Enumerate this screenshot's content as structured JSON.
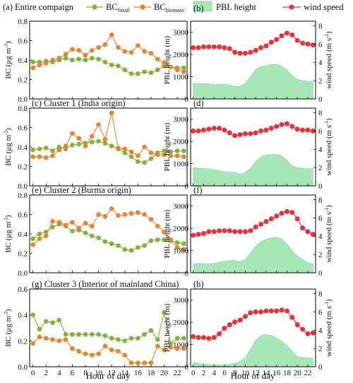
{
  "legend": {
    "prefix": "(a) Entire compaign",
    "bc_fossil": {
      "base": "BC",
      "sub": "fossil",
      "color": "#7fb33a"
    },
    "bc_biomass": {
      "base": "BC",
      "sub": "biomass",
      "color": "#e8832f"
    },
    "pbl": {
      "label": "PBL height",
      "color": "#a8e6b8"
    },
    "wind": {
      "label": "wind speed",
      "color": "#e8323a"
    }
  },
  "axes": {
    "xlabel": "Hour of  day",
    "bc_ylabel": {
      "base": "BC (",
      "unit": "μg m",
      "sup": "-3",
      "close": ")"
    },
    "pbl_ylabel": "PBL height (m)",
    "wind_ylabel": {
      "base": "wind speed (m s",
      "sup": "-1",
      "close": ")"
    },
    "x_ticks": [
      0,
      2,
      4,
      6,
      8,
      10,
      12,
      14,
      16,
      18,
      20,
      22
    ],
    "bc_ticks": [
      "0.0",
      "0.2",
      "0.4",
      "0.6",
      "0.8"
    ],
    "pbl_ticks": [
      "0",
      "1000",
      "2000",
      "3000"
    ],
    "wind_ticks": [
      "0",
      "2",
      "4",
      "6",
      "8"
    ]
  },
  "chart_data": [
    {
      "panel": "a",
      "type": "line",
      "title": "",
      "x": [
        0,
        1,
        2,
        3,
        4,
        5,
        6,
        7,
        8,
        9,
        10,
        11,
        12,
        13,
        14,
        15,
        16,
        17,
        18,
        19,
        20,
        21,
        22,
        23
      ],
      "ylim": [
        0,
        0.8
      ],
      "series": [
        {
          "name": "BC fossil",
          "values": [
            0.38,
            0.38,
            0.39,
            0.38,
            0.4,
            0.42,
            0.4,
            0.41,
            0.4,
            0.42,
            0.41,
            0.38,
            0.35,
            0.34,
            0.3,
            0.26,
            0.26,
            0.28,
            0.27,
            0.3,
            0.34,
            0.33,
            0.32,
            0.32
          ]
        },
        {
          "name": "BC biomass",
          "values": [
            0.32,
            0.35,
            0.37,
            0.4,
            0.42,
            0.46,
            0.51,
            0.5,
            0.45,
            0.5,
            0.53,
            0.56,
            0.66,
            0.53,
            0.49,
            0.48,
            0.55,
            0.49,
            0.47,
            0.41,
            0.37,
            0.33,
            0.3,
            0.28
          ]
        }
      ]
    },
    {
      "panel": "b",
      "type": "area+line",
      "title": "",
      "x": [
        0,
        1,
        2,
        3,
        4,
        5,
        6,
        7,
        8,
        9,
        10,
        11,
        12,
        13,
        14,
        15,
        16,
        17,
        18,
        19,
        20,
        21,
        22,
        23
      ],
      "ylim_pbl": [
        0,
        3500
      ],
      "ylim_wind": [
        0,
        8.5
      ],
      "series": [
        {
          "name": "PBL height",
          "values": [
            700,
            700,
            690,
            680,
            650,
            650,
            650,
            640,
            560,
            560,
            700,
            1000,
            1350,
            1450,
            1500,
            1550,
            1560,
            1480,
            1300,
            1050,
            880,
            820,
            800,
            780
          ]
        },
        {
          "name": "wind speed",
          "values": [
            5.6,
            5.6,
            5.7,
            5.7,
            5.7,
            5.7,
            5.6,
            5.5,
            5.1,
            5.0,
            5.0,
            5.1,
            5.3,
            5.6,
            5.8,
            6.2,
            6.5,
            6.9,
            7.2,
            7.0,
            6.4,
            6.1,
            6.0,
            5.9
          ]
        }
      ]
    },
    {
      "panel": "c",
      "type": "line",
      "title": "(c) Cluster 1 (India origin)",
      "x": [
        0,
        1,
        2,
        3,
        4,
        5,
        6,
        7,
        8,
        9,
        10,
        11,
        12,
        13,
        14,
        15,
        16,
        17,
        18,
        19,
        20,
        21,
        22,
        23
      ],
      "ylim": [
        0,
        0.8
      ],
      "series": [
        {
          "name": "BC fossil",
          "values": [
            0.37,
            0.38,
            0.39,
            0.36,
            0.4,
            0.38,
            0.42,
            0.43,
            0.44,
            0.45,
            0.46,
            0.44,
            0.41,
            0.38,
            0.34,
            0.3,
            0.25,
            0.24,
            0.28,
            0.34,
            0.36,
            0.35,
            0.36,
            0.36
          ]
        },
        {
          "name": "BC biomass",
          "values": [
            0.3,
            0.3,
            0.29,
            0.31,
            0.37,
            0.41,
            0.54,
            0.49,
            0.41,
            0.51,
            0.63,
            0.48,
            0.75,
            0.39,
            0.38,
            0.35,
            0.31,
            0.4,
            0.34,
            0.32,
            0.32,
            0.31,
            0.31,
            0.3
          ]
        }
      ]
    },
    {
      "panel": "d",
      "type": "area+line",
      "title": "",
      "x": [
        0,
        1,
        2,
        3,
        4,
        5,
        6,
        7,
        8,
        9,
        10,
        11,
        12,
        13,
        14,
        15,
        16,
        17,
        18,
        19,
        20,
        21,
        22,
        23
      ],
      "ylim_pbl": [
        0,
        3500
      ],
      "ylim_wind": [
        0,
        8.5
      ],
      "series": [
        {
          "name": "PBL height",
          "values": [
            820,
            800,
            780,
            770,
            720,
            680,
            640,
            620,
            600,
            520,
            600,
            800,
            1100,
            1300,
            1400,
            1400,
            1420,
            1350,
            1150,
            900,
            820,
            800,
            780,
            780
          ]
        },
        {
          "name": "wind speed",
          "values": [
            6.0,
            6.0,
            6.1,
            6.2,
            6.3,
            6.3,
            6.1,
            5.8,
            5.5,
            5.6,
            5.7,
            5.7,
            5.8,
            6.0,
            6.1,
            6.3,
            6.5,
            6.7,
            6.8,
            6.5,
            6.2,
            6.1,
            6.1,
            6.0
          ]
        }
      ]
    },
    {
      "panel": "e",
      "type": "line",
      "title": "(e) Cluster 2 (Burma origin)",
      "x": [
        0,
        1,
        2,
        3,
        4,
        5,
        6,
        7,
        8,
        9,
        10,
        11,
        12,
        13,
        14,
        15,
        16,
        17,
        18,
        19,
        20,
        21,
        22,
        23
      ],
      "ylim": [
        0,
        0.8
      ],
      "series": [
        {
          "name": "BC fossil",
          "values": [
            0.35,
            0.4,
            0.42,
            0.47,
            0.5,
            0.48,
            0.43,
            0.44,
            0.41,
            0.38,
            0.36,
            0.32,
            0.3,
            0.28,
            0.24,
            0.23,
            0.26,
            0.28,
            0.33,
            0.34,
            0.34,
            0.33,
            0.31,
            0.3
          ]
        },
        {
          "name": "BC biomass",
          "values": [
            0.29,
            0.35,
            0.38,
            0.53,
            0.52,
            0.49,
            0.52,
            0.46,
            0.51,
            0.48,
            0.6,
            0.58,
            0.66,
            0.59,
            0.6,
            0.61,
            0.62,
            0.6,
            0.55,
            0.48,
            0.42,
            0.34,
            0.26,
            0.24
          ]
        }
      ]
    },
    {
      "panel": "f",
      "type": "area+line",
      "title": "",
      "x": [
        0,
        1,
        2,
        3,
        4,
        5,
        6,
        7,
        8,
        9,
        10,
        11,
        12,
        13,
        14,
        15,
        16,
        17,
        18,
        19,
        20,
        21,
        22,
        23
      ],
      "ylim_pbl": [
        0,
        3500
      ],
      "ylim_wind": [
        0,
        8.5
      ],
      "series": [
        {
          "name": "PBL height",
          "values": [
            400,
            420,
            400,
            400,
            420,
            470,
            520,
            550,
            560,
            500,
            600,
            900,
            1200,
            1400,
            1500,
            1580,
            1600,
            1520,
            1300,
            1000,
            750,
            600,
            450,
            400
          ]
        },
        {
          "name": "wind speed",
          "values": [
            4.1,
            4.2,
            4.3,
            4.5,
            4.5,
            4.6,
            4.6,
            4.6,
            4.5,
            4.5,
            4.5,
            4.6,
            5.0,
            5.3,
            5.6,
            5.9,
            6.2,
            6.5,
            6.7,
            6.6,
            5.9,
            4.9,
            4.5,
            4.2
          ]
        }
      ]
    },
    {
      "panel": "g",
      "type": "line",
      "title": "(g) Cluster 3 (Interior of mainland China)",
      "x": [
        0,
        1,
        2,
        3,
        4,
        5,
        6,
        7,
        8,
        9,
        10,
        11,
        12,
        13,
        14,
        15,
        16,
        17,
        18,
        19,
        20,
        21,
        22,
        23
      ],
      "ylim": [
        0,
        0.6
      ],
      "series": [
        {
          "name": "BC fossil",
          "values": [
            0.4,
            0.29,
            0.35,
            0.34,
            0.36,
            0.25,
            0.25,
            0.25,
            0.25,
            0.25,
            0.25,
            0.24,
            0.22,
            0.21,
            0.2,
            0.22,
            0.22,
            0.25,
            0.28,
            0.21,
            0.42,
            0.18,
            0.22,
            0.22
          ]
        },
        {
          "name": "BC biomass",
          "values": [
            0.18,
            0.23,
            0.22,
            0.21,
            0.2,
            0.21,
            0.14,
            0.12,
            0.1,
            0.09,
            0.1,
            0.16,
            0.13,
            0.12,
            0.09,
            0.03,
            0.03,
            0.03,
            0.03,
            0.16,
            0.13,
            0.15,
            0.14,
            0.14
          ]
        }
      ]
    },
    {
      "panel": "h",
      "type": "area+line",
      "title": "",
      "x": [
        0,
        1,
        2,
        3,
        4,
        5,
        6,
        7,
        8,
        9,
        10,
        11,
        12,
        13,
        14,
        15,
        16,
        17,
        18,
        19,
        20,
        21,
        22,
        23
      ],
      "ylim_pbl": [
        0,
        3500
      ],
      "ylim_wind": [
        0,
        8.5
      ],
      "series": [
        {
          "name": "PBL height",
          "values": [
            200,
            150,
            120,
            100,
            90,
            80,
            80,
            100,
            150,
            250,
            400,
            800,
            1200,
            1400,
            1450,
            1400,
            1300,
            1150,
            950,
            700,
            450,
            420,
            400,
            380
          ]
        },
        {
          "name": "wind speed",
          "values": [
            3.3,
            3.2,
            3.2,
            3.1,
            3.2,
            3.6,
            4.2,
            4.6,
            4.9,
            5.1,
            5.5,
            5.9,
            6.0,
            6.0,
            6.1,
            6.1,
            6.1,
            6.2,
            6.1,
            5.4,
            4.6,
            4.1,
            3.6,
            3.7
          ]
        }
      ]
    }
  ]
}
